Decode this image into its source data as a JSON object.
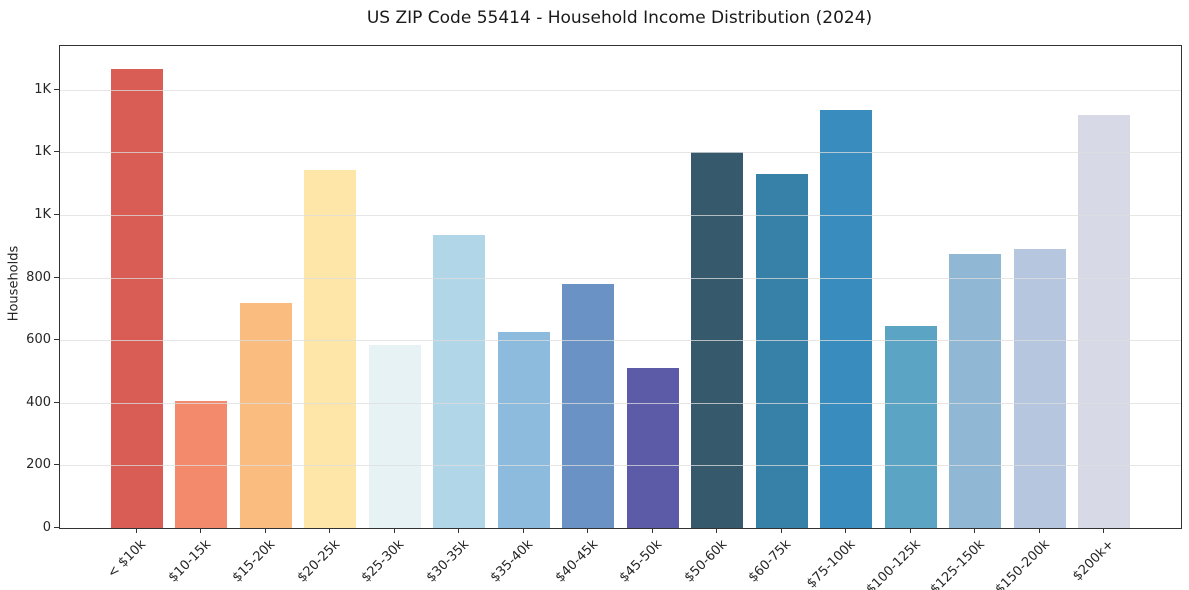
{
  "figure": {
    "title": "US ZIP Code 55414 - Household Income Distribution (2024)",
    "background_color": "#ffffff"
  },
  "chart_data": {
    "type": "bar",
    "title": "US ZIP Code 55414 - Household Income Distribution (2024)",
    "xlabel": "",
    "ylabel": "Households",
    "categories": [
      "< $10k",
      "$10-15k",
      "$15-20k",
      "$20-25k",
      "$25-30k",
      "$30-35k",
      "$35-40k",
      "$40-45k",
      "$45-50k",
      "$50-60k",
      "$60-75k",
      "$75-100k",
      "$100-125k",
      "$125-150k",
      "$150-200k",
      "$200k+"
    ],
    "values": [
      1465,
      405,
      720,
      1145,
      585,
      935,
      625,
      780,
      510,
      1200,
      1130,
      1335,
      645,
      875,
      890,
      1320
    ],
    "bar_colors": [
      "#d95c55",
      "#f28a6b",
      "#fbbc80",
      "#fde6a8",
      "#e7f2f4",
      "#b0d6e8",
      "#8dbbdd",
      "#6b92c5",
      "#5c5ba8",
      "#36596c",
      "#3781a9",
      "#388cbe",
      "#5ba4c4",
      "#90b8d5",
      "#b5c6de",
      "#d8d9e6"
    ],
    "ylim": [
      0,
      1540
    ],
    "ytick_values": [
      0,
      200,
      400,
      600,
      800,
      1000,
      1200,
      1400
    ],
    "ytick_labels": [
      "0",
      "200",
      "400",
      "600",
      "800",
      "1K",
      "1K",
      "1K"
    ],
    "grid": "horizontal",
    "grid_color": "#dddddd",
    "axis_color": "#333333",
    "legend_position": "none",
    "bar_width_fraction": 0.8,
    "x_axis_padding_units": 1.19
  }
}
